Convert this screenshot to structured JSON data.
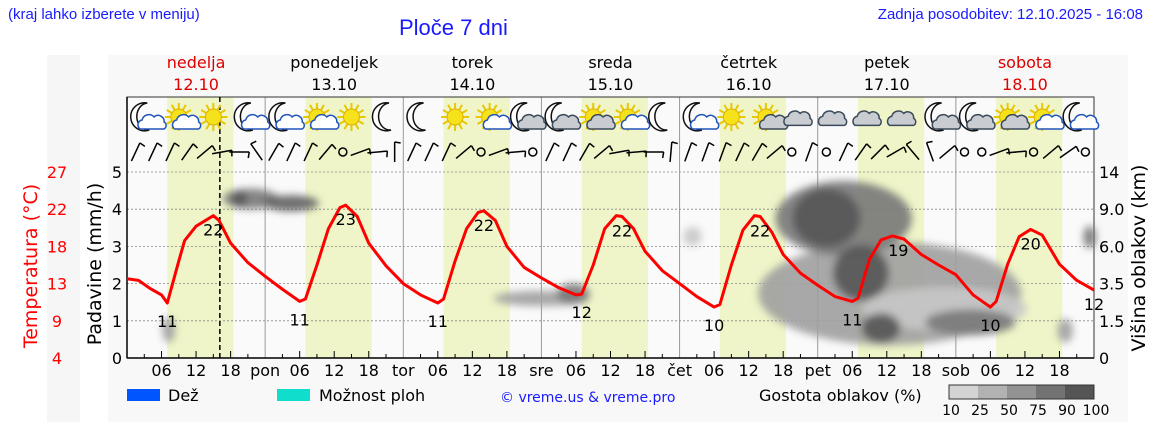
{
  "header": {
    "region_hint": "(kraj lahko izberete v meniju)",
    "title": "Ploče 7 dni",
    "last_update": "Zadnja posodobitev: 12.10.2025 - 16:08"
  },
  "chart_data": {
    "type": "line",
    "title": "Ploče 7 dni",
    "days": [
      {
        "name": "nedelja",
        "date": "12.10",
        "weekend": true,
        "abbr": ""
      },
      {
        "name": "ponedeljek",
        "date": "13.10",
        "weekend": false,
        "abbr": "pon"
      },
      {
        "name": "torek",
        "date": "14.10",
        "weekend": false,
        "abbr": "tor"
      },
      {
        "name": "sreda",
        "date": "15.10",
        "weekend": false,
        "abbr": "sre"
      },
      {
        "name": "četrtek",
        "date": "16.10",
        "weekend": false,
        "abbr": "čet"
      },
      {
        "name": "petek",
        "date": "17.10",
        "weekend": false,
        "abbr": "pet"
      },
      {
        "name": "sobota",
        "date": "18.10",
        "weekend": true,
        "abbr": "sob"
      }
    ],
    "hour_ticks": [
      "06",
      "12",
      "18"
    ],
    "now_hour": 16.13,
    "left_axis": {
      "label": "Padavine (mm/h)",
      "ticks": [
        "0",
        "1",
        "2",
        "3",
        "4",
        "5"
      ],
      "ylim": [
        0,
        5
      ]
    },
    "temp_axis": {
      "label": "Temperatura (°C)",
      "ticks": [
        "4",
        "9",
        "13",
        "18",
        "22",
        "27"
      ],
      "ylim": [
        4,
        27
      ]
    },
    "right_axis": {
      "label": "Višina oblakov (km)",
      "ticks": [
        "0",
        "1.5",
        "3.5",
        "6.0",
        "9.0",
        "14"
      ]
    },
    "temperature": [
      [
        0,
        13.8
      ],
      [
        2,
        13.6
      ],
      [
        4,
        12.6
      ],
      [
        6,
        11.8
      ],
      [
        7,
        10.8
      ],
      [
        9,
        16
      ],
      [
        10,
        18.5
      ],
      [
        12,
        20.3
      ],
      [
        15,
        21.6
      ],
      [
        16,
        21
      ],
      [
        18,
        18.2
      ],
      [
        21,
        15.8
      ],
      [
        24,
        14.1
      ],
      [
        27,
        12.5
      ],
      [
        30,
        11.0
      ],
      [
        31,
        11.3
      ],
      [
        33,
        15.5
      ],
      [
        35,
        20
      ],
      [
        37,
        22.6
      ],
      [
        38,
        22.9
      ],
      [
        40,
        21.5
      ],
      [
        42,
        18.2
      ],
      [
        45,
        15.4
      ],
      [
        48,
        13.2
      ],
      [
        51,
        11.8
      ],
      [
        54,
        10.8
      ],
      [
        55,
        11.3
      ],
      [
        57,
        16
      ],
      [
        59,
        20
      ],
      [
        61,
        22
      ],
      [
        62,
        22.2
      ],
      [
        64,
        21
      ],
      [
        66,
        17.8
      ],
      [
        69,
        15.2
      ],
      [
        72,
        13.9
      ],
      [
        75,
        12.7
      ],
      [
        78,
        11.8
      ],
      [
        79,
        11.9
      ],
      [
        81,
        15.5
      ],
      [
        83,
        20
      ],
      [
        85,
        21.6
      ],
      [
        86,
        21.5
      ],
      [
        88,
        20
      ],
      [
        90,
        17.2
      ],
      [
        93,
        14.8
      ],
      [
        96,
        13.2
      ],
      [
        99,
        11.6
      ],
      [
        102,
        10.3
      ],
      [
        103,
        10.6
      ],
      [
        105,
        15.5
      ],
      [
        107,
        19.8
      ],
      [
        109,
        21.6
      ],
      [
        110,
        21.5
      ],
      [
        112,
        19.6
      ],
      [
        114,
        16.8
      ],
      [
        117,
        14.5
      ],
      [
        120,
        13
      ],
      [
        123,
        11.6
      ],
      [
        126,
        11.0
      ],
      [
        127,
        11.4
      ],
      [
        129,
        16.2
      ],
      [
        131,
        18.6
      ],
      [
        133,
        19.1
      ],
      [
        135,
        18.7
      ],
      [
        138,
        16.8
      ],
      [
        141,
        15.5
      ],
      [
        144,
        14.3
      ],
      [
        147,
        11.8
      ],
      [
        150,
        10.3
      ],
      [
        151,
        11
      ],
      [
        153,
        15.6
      ],
      [
        155,
        19
      ],
      [
        157,
        19.9
      ],
      [
        159,
        19.2
      ],
      [
        162,
        15.6
      ],
      [
        165,
        13.6
      ],
      [
        168,
        12.4
      ]
    ],
    "labels": [
      {
        "hour": 7,
        "value": "11",
        "kind": "min"
      },
      {
        "hour": 15,
        "value": "22",
        "kind": "max"
      },
      {
        "hour": 30,
        "value": "11",
        "kind": "min"
      },
      {
        "hour": 38,
        "value": "23",
        "kind": "max"
      },
      {
        "hour": 54,
        "value": "11",
        "kind": "min"
      },
      {
        "hour": 62,
        "value": "22",
        "kind": "max"
      },
      {
        "hour": 79,
        "value": "12",
        "kind": "min"
      },
      {
        "hour": 86,
        "value": "22",
        "kind": "max"
      },
      {
        "hour": 102,
        "value": "10",
        "kind": "min"
      },
      {
        "hour": 110,
        "value": "22",
        "kind": "max"
      },
      {
        "hour": 126,
        "value": "11",
        "kind": "min"
      },
      {
        "hour": 134,
        "value": "19",
        "kind": "max"
      },
      {
        "hour": 150,
        "value": "10",
        "kind": "min"
      },
      {
        "hour": 157,
        "value": "20",
        "kind": "max"
      },
      {
        "hour": 168,
        "value": "12",
        "kind": "end"
      }
    ],
    "clouds": [
      {
        "t0": 6.5,
        "t1": 8,
        "km0": 0.7,
        "km1": 1.6,
        "density": 50
      },
      {
        "t0": 17,
        "t1": 26,
        "km0": 9.3,
        "km1": 11.5,
        "density": 75
      },
      {
        "t0": 18.5,
        "t1": 20.5,
        "km0": 9.6,
        "km1": 11.2,
        "density": 100
      },
      {
        "t0": 24,
        "t1": 33,
        "km0": 9.0,
        "km1": 10.6,
        "density": 90
      },
      {
        "t0": 64,
        "t1": 80,
        "km0": 2.4,
        "km1": 3.0,
        "density": 50
      },
      {
        "t0": 75,
        "t1": 80,
        "km0": 2.5,
        "km1": 3.4,
        "density": 75
      },
      {
        "t0": 97,
        "t1": 99.5,
        "km0": 6.2,
        "km1": 7.4,
        "density": 25
      },
      {
        "t0": 110,
        "t1": 155,
        "km0": 0.6,
        "km1": 6.2,
        "density": 50
      },
      {
        "t0": 128,
        "t1": 156,
        "km0": 1.2,
        "km1": 3.2,
        "density": 25
      },
      {
        "t0": 113,
        "t1": 136,
        "km0": 5.5,
        "km1": 12.5,
        "density": 75
      },
      {
        "t0": 116,
        "t1": 127,
        "km0": 6.1,
        "km1": 11.5,
        "density": 100
      },
      {
        "t0": 123,
        "t1": 132,
        "km0": 2.7,
        "km1": 5.9,
        "density": 100
      },
      {
        "t0": 128,
        "t1": 134,
        "km0": 0.7,
        "km1": 1.8,
        "density": 100
      },
      {
        "t0": 139,
        "t1": 154,
        "km0": 1.0,
        "km1": 2.0,
        "density": 75
      },
      {
        "t0": 162,
        "t1": 164,
        "km0": 0.7,
        "km1": 1.5,
        "density": 50
      },
      {
        "t0": 166.5,
        "t1": 168,
        "km0": 6.0,
        "km1": 7.5,
        "density": 75
      }
    ],
    "icons": [
      "moon-cloud",
      "sun-cloud",
      "sun",
      "moon-cloud",
      "moon-cloud",
      "sun-cloud",
      "sun",
      "moon",
      "moon",
      "sun",
      "sun-cloud",
      "moon-cloud-grey",
      "moon-cloud-grey",
      "sun-cloud-grey",
      "sun-cloud",
      "moon",
      "moon-cloud",
      "sun",
      "sun-cloud-grey",
      "cloud",
      "cloud",
      "cloud",
      "cloud",
      "moon-cloud-grey",
      "moon-cloud-grey",
      "sun-cloud-grey",
      "sun-cloud",
      "moon-cloud"
    ],
    "wind": [
      25,
      25,
      25,
      35,
      50,
      80,
      90,
      -35,
      30,
      25,
      25,
      40,
      "calm",
      70,
      85,
      0,
      25,
      25,
      25,
      50,
      "calm",
      70,
      85,
      "calm",
      25,
      25,
      30,
      50,
      80,
      85,
      90,
      5,
      20,
      20,
      20,
      25,
      30,
      50,
      "calm",
      20,
      "calm",
      25,
      35,
      45,
      60,
      -40,
      -20,
      50,
      "calm",
      "calm",
      70,
      85,
      "calm",
      50,
      55,
      "calm"
    ],
    "legend": {
      "rain": {
        "label": "Dež",
        "color": "#0055ff"
      },
      "showers": {
        "label": "Možnost ploh",
        "color": "#11ddcc"
      },
      "copyright": "© vreme.us & vreme.pro",
      "cloud_density_label": "Gostota oblakov (%)",
      "cloud_scale": [
        {
          "value": "10",
          "color": "#d4d4d4"
        },
        {
          "value": "25",
          "color": "#b2b2b2"
        },
        {
          "value": "50",
          "color": "#939393"
        },
        {
          "value": "75",
          "color": "#737373"
        },
        {
          "value": "90",
          "color": "#555555"
        },
        {
          "value": "100",
          "color": ""
        }
      ]
    },
    "colors": {
      "temperature": "#ff0000",
      "daylight": "#eff5c8",
      "weekend": "#dd0000"
    }
  }
}
